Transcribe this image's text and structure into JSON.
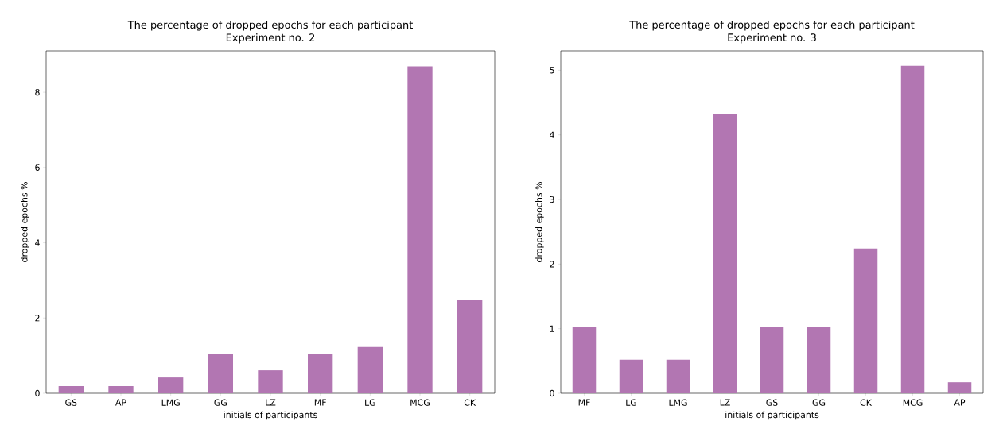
{
  "chart_data": [
    {
      "type": "bar",
      "title": "The percentage of dropped epochs for each participant",
      "subtitle": "Experiment no. 2",
      "xlabel": "initials of participants",
      "ylabel": "dropped epochs %",
      "categories": [
        "GS",
        "AP",
        "LMG",
        "GG",
        "LZ",
        "MF",
        "LG",
        "MCG",
        "CK"
      ],
      "values": [
        0.19,
        0.19,
        0.42,
        1.04,
        0.61,
        1.04,
        1.23,
        8.69,
        2.49
      ],
      "color": "#b276b2",
      "ylim": [
        0,
        9.1
      ],
      "yticks": [
        0,
        2,
        4,
        6,
        8
      ]
    },
    {
      "type": "bar",
      "title": "The percentage of dropped epochs for each participant",
      "subtitle": "Experiment no. 3",
      "xlabel": "initials of participants",
      "ylabel": "dropped epochs %",
      "categories": [
        "MF",
        "LG",
        "LMG",
        "LZ",
        "GS",
        "GG",
        "CK",
        "MCG",
        "AP"
      ],
      "values": [
        1.03,
        0.52,
        0.52,
        4.32,
        1.03,
        1.03,
        2.24,
        5.07,
        0.17
      ],
      "color": "#b276b2",
      "ylim": [
        0,
        5.3
      ],
      "yticks": [
        0,
        1,
        2,
        3,
        4,
        5
      ]
    }
  ]
}
